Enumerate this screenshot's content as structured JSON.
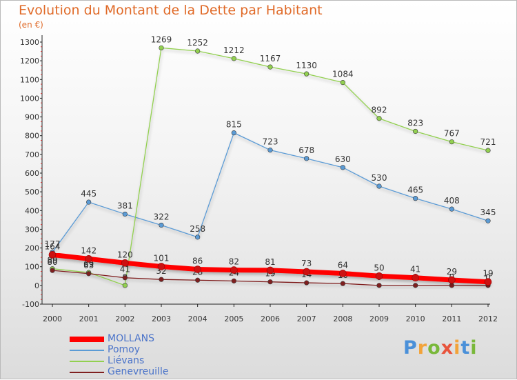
{
  "chart_data": {
    "type": "line",
    "title": "Evolution du Montant de la Dette par Habitant",
    "subtitle": "(en €)",
    "xlabel": "",
    "ylabel": "",
    "categories": [
      "2000",
      "2001",
      "2002",
      "2003",
      "2004",
      "2005",
      "2006",
      "2007",
      "2008",
      "2009",
      "2010",
      "2011",
      "2012"
    ],
    "ylim": [
      -100,
      1300
    ],
    "yticks": [
      -100,
      0,
      100,
      200,
      300,
      400,
      500,
      600,
      700,
      800,
      900,
      1000,
      1100,
      1200,
      1300
    ],
    "grid": false,
    "legend_position": "bottom-left",
    "series": [
      {
        "name": "MOLLANS",
        "color": "#ff0000",
        "values": [
          164,
          142,
          120,
          101,
          86,
          82,
          81,
          73,
          64,
          50,
          41,
          29,
          19
        ]
      },
      {
        "name": "Pomoy",
        "color": "#5b9bd5",
        "values": [
          177,
          445,
          381,
          322,
          258,
          815,
          723,
          678,
          630,
          530,
          465,
          408,
          345
        ]
      },
      {
        "name": "Liévans",
        "color": "#92d050",
        "values": [
          89,
          69,
          0,
          1269,
          1252,
          1212,
          1167,
          1130,
          1084,
          892,
          823,
          767,
          721
        ]
      },
      {
        "name": "Genevreuille",
        "color": "#7f1f1f",
        "values": [
          80,
          63,
          41,
          32,
          28,
          24,
          19,
          14,
          10,
          0,
          0,
          0,
          0
        ]
      }
    ]
  },
  "logo": {
    "letters": [
      "P",
      "r",
      "o",
      "x",
      "i",
      "t",
      "i"
    ],
    "colors": [
      "#4a90d9",
      "#f2a33a",
      "#79b83a",
      "#e8543c",
      "#f2a33a",
      "#4a90d9",
      "#79b83a"
    ]
  }
}
